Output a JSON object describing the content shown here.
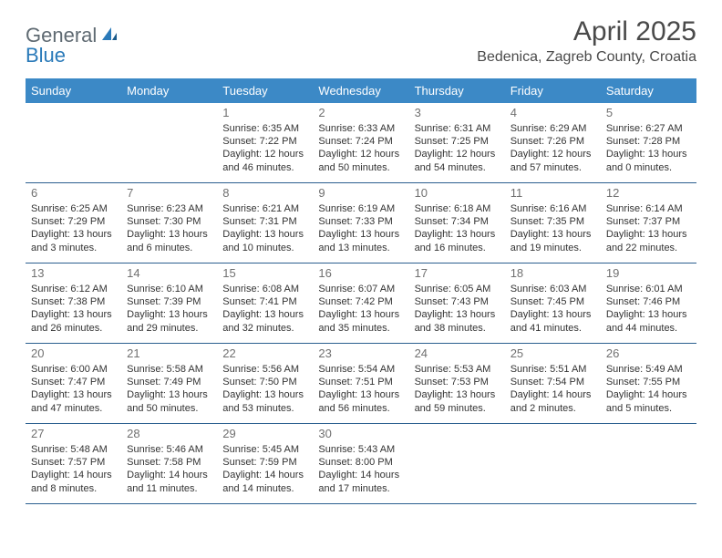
{
  "logo": {
    "part1": "General",
    "part2": "Blue"
  },
  "title": "April 2025",
  "location": "Bedenica, Zagreb County, Croatia",
  "colors": {
    "header_bg": "#3c89c6",
    "header_text": "#ffffff",
    "row_border": "#2b5f8f",
    "daynum": "#707070",
    "body_text": "#333333",
    "month_title": "#4a4a4a",
    "logo_gray": "#5f6a72",
    "logo_blue": "#2a7ab9",
    "page_bg": "#ffffff"
  },
  "weekdays": [
    "Sunday",
    "Monday",
    "Tuesday",
    "Wednesday",
    "Thursday",
    "Friday",
    "Saturday"
  ],
  "weeks": [
    [
      null,
      null,
      {
        "n": "1",
        "sr": "Sunrise: 6:35 AM",
        "ss": "Sunset: 7:22 PM",
        "dl": "Daylight: 12 hours and 46 minutes."
      },
      {
        "n": "2",
        "sr": "Sunrise: 6:33 AM",
        "ss": "Sunset: 7:24 PM",
        "dl": "Daylight: 12 hours and 50 minutes."
      },
      {
        "n": "3",
        "sr": "Sunrise: 6:31 AM",
        "ss": "Sunset: 7:25 PM",
        "dl": "Daylight: 12 hours and 54 minutes."
      },
      {
        "n": "4",
        "sr": "Sunrise: 6:29 AM",
        "ss": "Sunset: 7:26 PM",
        "dl": "Daylight: 12 hours and 57 minutes."
      },
      {
        "n": "5",
        "sr": "Sunrise: 6:27 AM",
        "ss": "Sunset: 7:28 PM",
        "dl": "Daylight: 13 hours and 0 minutes."
      }
    ],
    [
      {
        "n": "6",
        "sr": "Sunrise: 6:25 AM",
        "ss": "Sunset: 7:29 PM",
        "dl": "Daylight: 13 hours and 3 minutes."
      },
      {
        "n": "7",
        "sr": "Sunrise: 6:23 AM",
        "ss": "Sunset: 7:30 PM",
        "dl": "Daylight: 13 hours and 6 minutes."
      },
      {
        "n": "8",
        "sr": "Sunrise: 6:21 AM",
        "ss": "Sunset: 7:31 PM",
        "dl": "Daylight: 13 hours and 10 minutes."
      },
      {
        "n": "9",
        "sr": "Sunrise: 6:19 AM",
        "ss": "Sunset: 7:33 PM",
        "dl": "Daylight: 13 hours and 13 minutes."
      },
      {
        "n": "10",
        "sr": "Sunrise: 6:18 AM",
        "ss": "Sunset: 7:34 PM",
        "dl": "Daylight: 13 hours and 16 minutes."
      },
      {
        "n": "11",
        "sr": "Sunrise: 6:16 AM",
        "ss": "Sunset: 7:35 PM",
        "dl": "Daylight: 13 hours and 19 minutes."
      },
      {
        "n": "12",
        "sr": "Sunrise: 6:14 AM",
        "ss": "Sunset: 7:37 PM",
        "dl": "Daylight: 13 hours and 22 minutes."
      }
    ],
    [
      {
        "n": "13",
        "sr": "Sunrise: 6:12 AM",
        "ss": "Sunset: 7:38 PM",
        "dl": "Daylight: 13 hours and 26 minutes."
      },
      {
        "n": "14",
        "sr": "Sunrise: 6:10 AM",
        "ss": "Sunset: 7:39 PM",
        "dl": "Daylight: 13 hours and 29 minutes."
      },
      {
        "n": "15",
        "sr": "Sunrise: 6:08 AM",
        "ss": "Sunset: 7:41 PM",
        "dl": "Daylight: 13 hours and 32 minutes."
      },
      {
        "n": "16",
        "sr": "Sunrise: 6:07 AM",
        "ss": "Sunset: 7:42 PM",
        "dl": "Daylight: 13 hours and 35 minutes."
      },
      {
        "n": "17",
        "sr": "Sunrise: 6:05 AM",
        "ss": "Sunset: 7:43 PM",
        "dl": "Daylight: 13 hours and 38 minutes."
      },
      {
        "n": "18",
        "sr": "Sunrise: 6:03 AM",
        "ss": "Sunset: 7:45 PM",
        "dl": "Daylight: 13 hours and 41 minutes."
      },
      {
        "n": "19",
        "sr": "Sunrise: 6:01 AM",
        "ss": "Sunset: 7:46 PM",
        "dl": "Daylight: 13 hours and 44 minutes."
      }
    ],
    [
      {
        "n": "20",
        "sr": "Sunrise: 6:00 AM",
        "ss": "Sunset: 7:47 PM",
        "dl": "Daylight: 13 hours and 47 minutes."
      },
      {
        "n": "21",
        "sr": "Sunrise: 5:58 AM",
        "ss": "Sunset: 7:49 PM",
        "dl": "Daylight: 13 hours and 50 minutes."
      },
      {
        "n": "22",
        "sr": "Sunrise: 5:56 AM",
        "ss": "Sunset: 7:50 PM",
        "dl": "Daylight: 13 hours and 53 minutes."
      },
      {
        "n": "23",
        "sr": "Sunrise: 5:54 AM",
        "ss": "Sunset: 7:51 PM",
        "dl": "Daylight: 13 hours and 56 minutes."
      },
      {
        "n": "24",
        "sr": "Sunrise: 5:53 AM",
        "ss": "Sunset: 7:53 PM",
        "dl": "Daylight: 13 hours and 59 minutes."
      },
      {
        "n": "25",
        "sr": "Sunrise: 5:51 AM",
        "ss": "Sunset: 7:54 PM",
        "dl": "Daylight: 14 hours and 2 minutes."
      },
      {
        "n": "26",
        "sr": "Sunrise: 5:49 AM",
        "ss": "Sunset: 7:55 PM",
        "dl": "Daylight: 14 hours and 5 minutes."
      }
    ],
    [
      {
        "n": "27",
        "sr": "Sunrise: 5:48 AM",
        "ss": "Sunset: 7:57 PM",
        "dl": "Daylight: 14 hours and 8 minutes."
      },
      {
        "n": "28",
        "sr": "Sunrise: 5:46 AM",
        "ss": "Sunset: 7:58 PM",
        "dl": "Daylight: 14 hours and 11 minutes."
      },
      {
        "n": "29",
        "sr": "Sunrise: 5:45 AM",
        "ss": "Sunset: 7:59 PM",
        "dl": "Daylight: 14 hours and 14 minutes."
      },
      {
        "n": "30",
        "sr": "Sunrise: 5:43 AM",
        "ss": "Sunset: 8:00 PM",
        "dl": "Daylight: 14 hours and 17 minutes."
      },
      null,
      null,
      null
    ]
  ]
}
